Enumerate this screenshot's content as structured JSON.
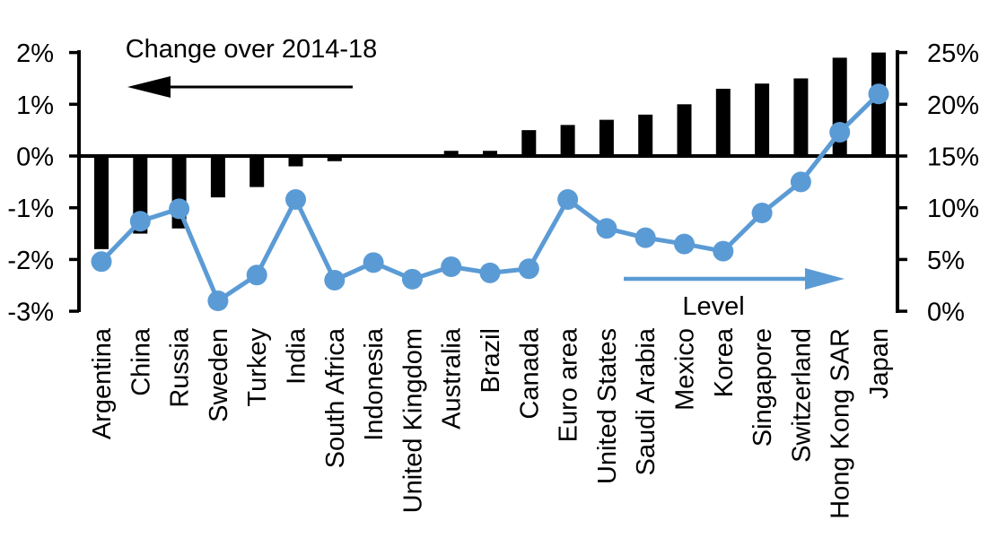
{
  "chart_data": {
    "type": "bar",
    "subtype": "dual-axis-combo-bar-and-line",
    "title": "",
    "categories": [
      "Argentina",
      "China",
      "Russia",
      "Sweden",
      "Turkey",
      "India",
      "South Africa",
      "Indonesia",
      "United Kingdom",
      "Australia",
      "Brazil",
      "Canada",
      "Euro area",
      "United States",
      "Saudi Arabia",
      "Mexico",
      "Korea",
      "Singapore",
      "Switzerland",
      "Hong Kong SAR",
      "Japan"
    ],
    "series": [
      {
        "name": "Change over 2014-18",
        "type": "bar",
        "axis": "left",
        "color": "#000000",
        "values": [
          -1.8,
          -1.5,
          -1.4,
          -0.8,
          -0.6,
          -0.2,
          -0.1,
          0.0,
          0.0,
          0.1,
          0.1,
          0.5,
          0.6,
          0.7,
          0.8,
          1.0,
          1.3,
          1.4,
          1.5,
          1.9,
          2.0
        ]
      },
      {
        "name": "Level",
        "type": "line",
        "axis": "right",
        "color": "#5B9BD5",
        "values": [
          4.8,
          8.7,
          9.9,
          1.0,
          3.5,
          10.8,
          3.0,
          4.7,
          3.1,
          4.3,
          3.7,
          4.1,
          10.8,
          8.0,
          7.1,
          6.5,
          5.8,
          9.5,
          12.5,
          17.3,
          21.0
        ]
      }
    ],
    "left_axis": {
      "min": -3,
      "max": 2,
      "tick_values": [
        2,
        1,
        0,
        -1,
        -2,
        -3
      ],
      "tick_labels": [
        "2%",
        "1%",
        "0%",
        "-1%",
        "-2%",
        "-3%"
      ]
    },
    "right_axis": {
      "min": 0,
      "max": 25,
      "tick_values": [
        25,
        20,
        15,
        10,
        5,
        0
      ],
      "tick_labels": [
        "25%",
        "20%",
        "15%",
        "10%",
        "5%",
        "0%"
      ]
    },
    "grid": false,
    "legend_position": "in-plot annotations with arrows",
    "annotations": [
      {
        "text": "Change over 2014-18",
        "arrow_direction": "left",
        "arrow_color": "#000000"
      },
      {
        "text": "Level",
        "arrow_direction": "right",
        "arrow_color": "#5B9BD5"
      }
    ]
  },
  "colors": {
    "bar": "#000000",
    "line": "#5B9BD5",
    "axis": "#000000",
    "text": "#000000",
    "background": "#FFFFFF"
  }
}
